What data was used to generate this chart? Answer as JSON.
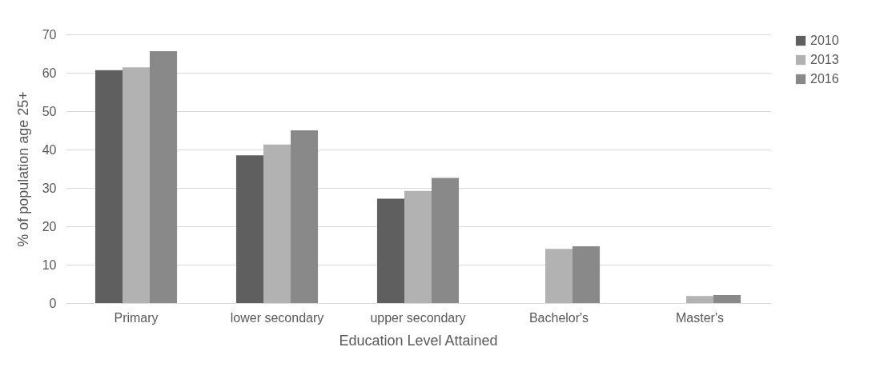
{
  "chart_data": {
    "type": "bar",
    "xlabel": "Education Level Attained",
    "ylabel": "% of population age 25+",
    "categories": [
      "Primary",
      "lower secondary",
      "upper secondary",
      "Bachelor's",
      "Master's"
    ],
    "series": [
      {
        "name": "2010",
        "color": "#5f5f5f",
        "values": [
          60.7,
          38.5,
          27.2,
          null,
          null
        ]
      },
      {
        "name": "2013",
        "color": "#b2b2b2",
        "values": [
          61.4,
          41.3,
          29.2,
          14.1,
          1.8
        ]
      },
      {
        "name": "2016",
        "color": "#898989",
        "values": [
          65.6,
          45.0,
          32.6,
          14.8,
          2.1
        ]
      }
    ],
    "ylim": [
      0,
      70
    ],
    "yticks": [
      0,
      10,
      20,
      30,
      40,
      50,
      60,
      70
    ],
    "grid": "y",
    "legend": "right"
  }
}
